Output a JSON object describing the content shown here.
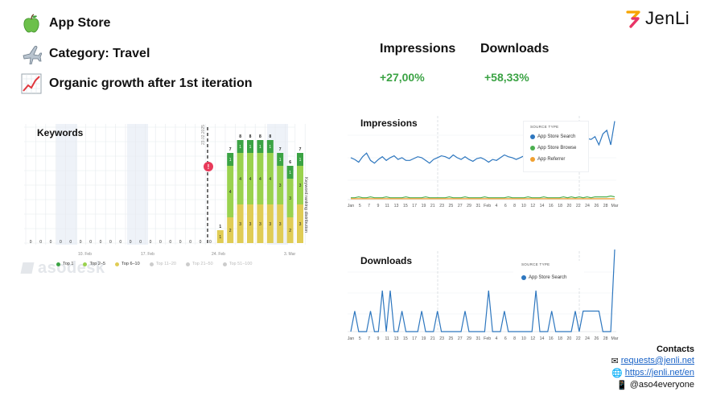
{
  "header": {
    "items": [
      {
        "icon": "green-apple-icon",
        "text": "App Store"
      },
      {
        "icon": "airplane-icon",
        "text": "Category: Travel"
      },
      {
        "icon": "growth-chart-icon",
        "text": "Organic growth after 1st iteration"
      }
    ]
  },
  "brand": {
    "name": "JenLi",
    "colors": [
      "#f7a400",
      "#e8336b"
    ]
  },
  "metrics": [
    {
      "label": "Impressions",
      "value": "+27,00%"
    },
    {
      "label": "Downloads",
      "value": "+58,33%"
    }
  ],
  "keywords_panel": {
    "title": "Keywords",
    "watermark": "asodesk",
    "side_label": "Keyword ranking distribution",
    "event_date": "23.02.2025",
    "event_marker": "!",
    "x_labels": [
      "10. Feb",
      "17. Feb",
      "24. Feb",
      "3. Mar"
    ],
    "legend": [
      {
        "label": "Top 1",
        "color": "#3ba344",
        "active": true
      },
      {
        "label": "Top 2–5",
        "color": "#9ad24e",
        "active": true
      },
      {
        "label": "Top 6–10",
        "color": "#e0cc55",
        "active": true
      },
      {
        "label": "Top 11–20",
        "color": "#cccccc",
        "active": false
      },
      {
        "label": "Top 21–50",
        "color": "#cccccc",
        "active": false
      },
      {
        "label": "Top 51–100",
        "color": "#cccccc",
        "active": false
      }
    ]
  },
  "impressions_panel": {
    "title": "Impressions",
    "legend_title": "SOURCE TYPE",
    "legend": [
      {
        "label": "App Store Search",
        "color": "#2e77bf"
      },
      {
        "label": "App Store Browse",
        "color": "#4caf50"
      },
      {
        "label": "App Referrer",
        "color": "#f0a030"
      }
    ]
  },
  "downloads_panel": {
    "title": "Downloads",
    "legend_title": "SOURCE TYPE",
    "legend": [
      {
        "label": "App Store Search",
        "color": "#2e77bf"
      }
    ]
  },
  "contacts": {
    "title": "Contacts",
    "email": "requests@jenli.net",
    "website": "https://jenli.net/en",
    "telegram": "@aso4everyone"
  },
  "chart_data": [
    {
      "type": "bar",
      "title": "Keywords",
      "ylabel": "Keyword ranking distribution",
      "x_ticks": [
        "10. Feb",
        "17. Feb",
        "24. Feb",
        "3. Mar"
      ],
      "totals": [
        0,
        0,
        0,
        0,
        0,
        0,
        0,
        0,
        0,
        0,
        0,
        0,
        0,
        0,
        0,
        0,
        0,
        0,
        0,
        1,
        7,
        8,
        8,
        8,
        8,
        7,
        6,
        7
      ],
      "series": [
        {
          "name": "Top 1",
          "values": [
            0,
            0,
            0,
            0,
            0,
            0,
            0,
            0,
            0,
            0,
            0,
            0,
            0,
            0,
            0,
            0,
            0,
            0,
            0,
            0,
            1,
            1,
            1,
            1,
            1,
            1,
            1,
            1
          ]
        },
        {
          "name": "Top 2–5",
          "values": [
            0,
            0,
            0,
            0,
            0,
            0,
            0,
            0,
            0,
            0,
            0,
            0,
            0,
            0,
            0,
            0,
            0,
            0,
            0,
            0,
            4,
            4,
            4,
            4,
            4,
            3,
            3,
            3
          ]
        },
        {
          "name": "Top 6–10",
          "values": [
            0,
            0,
            0,
            0,
            0,
            0,
            0,
            0,
            0,
            0,
            0,
            0,
            0,
            0,
            0,
            0,
            0,
            0,
            0,
            1,
            2,
            3,
            3,
            3,
            3,
            3,
            2,
            3
          ]
        }
      ]
    },
    {
      "type": "line",
      "title": "Impressions",
      "x_ticks": [
        "Jan",
        "5",
        "7",
        "9",
        "11",
        "13",
        "15",
        "17",
        "19",
        "21",
        "23",
        "25",
        "27",
        "29",
        "31",
        "Feb",
        "4",
        "6",
        "8",
        "10",
        "12",
        "14",
        "16",
        "18",
        "20",
        "22",
        "24",
        "26",
        "28",
        "Mar"
      ],
      "series": [
        {
          "name": "App Store Search",
          "values": [
            46,
            44,
            41,
            47,
            51,
            43,
            40,
            44,
            47,
            43,
            46,
            48,
            44,
            46,
            43,
            43,
            45,
            47,
            46,
            43,
            40,
            44,
            46,
            48,
            47,
            45,
            49,
            46,
            44,
            47,
            44,
            42,
            45,
            46,
            44,
            41,
            44,
            43,
            46,
            49,
            47,
            46,
            44,
            46,
            48,
            45,
            42,
            46,
            44,
            46,
            40,
            44,
            41,
            43,
            45,
            60,
            63,
            58,
            61,
            55,
            67,
            66,
            69,
            60,
            72,
            76,
            60,
            86
          ]
        },
        {
          "name": "App Store Browse",
          "values": [
            2,
            2,
            3,
            2,
            2,
            3,
            2,
            2,
            2,
            3,
            2,
            2,
            2,
            2,
            3,
            2,
            2,
            2,
            2,
            3,
            2,
            2,
            2,
            2,
            2,
            3,
            2,
            2,
            2,
            3,
            2,
            2,
            2,
            2,
            3,
            2,
            2,
            2,
            2,
            2,
            3,
            2,
            2,
            2,
            2,
            3,
            2,
            2,
            2,
            3,
            2,
            2,
            2,
            2,
            3,
            2,
            3,
            2,
            3,
            2,
            3,
            2,
            3,
            3,
            3,
            3,
            4,
            3
          ]
        },
        {
          "name": "App Referrer",
          "values": [
            1,
            1,
            1,
            1,
            1,
            1,
            1,
            1,
            1,
            1,
            1,
            1,
            1,
            1,
            1,
            1,
            1,
            1,
            1,
            1,
            1,
            1,
            1,
            1,
            1,
            1,
            1,
            1,
            1,
            1,
            1,
            1,
            1,
            1,
            1,
            1,
            1,
            1,
            1,
            1,
            1,
            1,
            1,
            1,
            1,
            1,
            1,
            1,
            1,
            1,
            1,
            1,
            1,
            1,
            1,
            1,
            1,
            1,
            1,
            1,
            1,
            1,
            1,
            1,
            1,
            1,
            1,
            1
          ]
        }
      ]
    },
    {
      "type": "line",
      "title": "Downloads",
      "x_ticks": [
        "Jan",
        "5",
        "7",
        "9",
        "11",
        "13",
        "15",
        "17",
        "19",
        "21",
        "23",
        "25",
        "27",
        "29",
        "31",
        "Feb",
        "4",
        "6",
        "8",
        "10",
        "12",
        "14",
        "16",
        "18",
        "20",
        "22",
        "24",
        "26",
        "28",
        "Mar"
      ],
      "series": [
        {
          "name": "App Store Search",
          "values": [
            0,
            1,
            0,
            0,
            0,
            1,
            0,
            0,
            2,
            0,
            2,
            0,
            0,
            1,
            0,
            0,
            0,
            0,
            1,
            0,
            0,
            0,
            1,
            0,
            0,
            0,
            0,
            0,
            0,
            1,
            0,
            0,
            0,
            0,
            0,
            2,
            0,
            0,
            0,
            1,
            0,
            0,
            0,
            0,
            0,
            0,
            0,
            2,
            0,
            0,
            0,
            1,
            0,
            0,
            0,
            0,
            0,
            1,
            0,
            1,
            1,
            1,
            1,
            1,
            0,
            0,
            0,
            4
          ]
        }
      ]
    }
  ]
}
